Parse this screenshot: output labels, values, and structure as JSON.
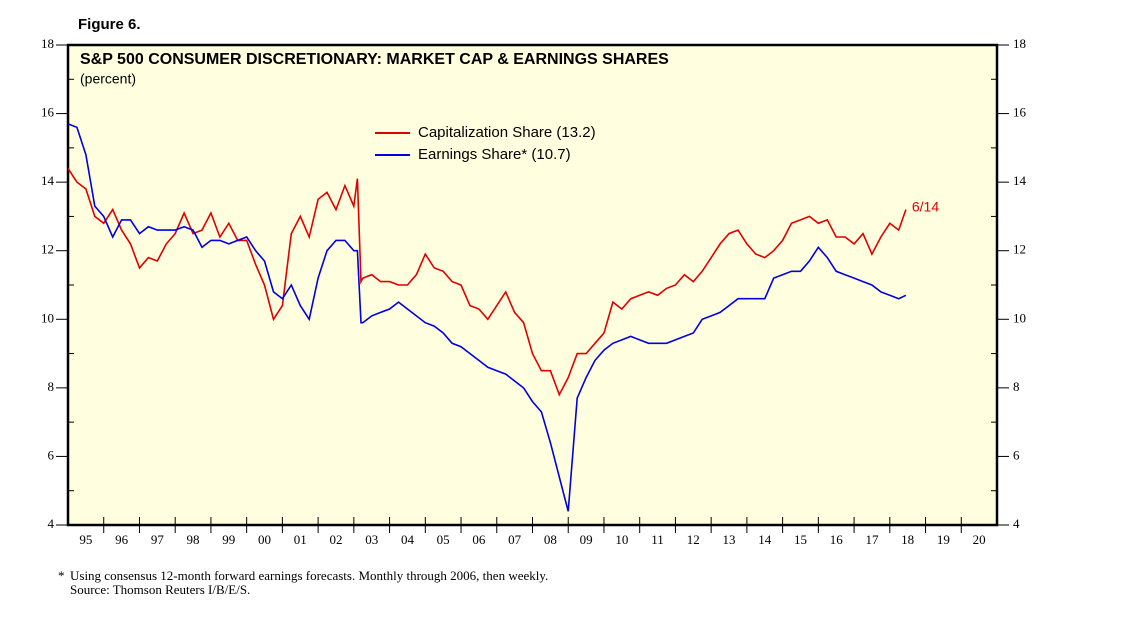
{
  "chart_data": {
    "type": "line",
    "figure_label": "Figure 6.",
    "title": "S&P 500 CONSUMER DISCRETIONARY: MARKET CAP & EARNINGS SHARES",
    "subtitle": "(percent)",
    "annotation": "6/14",
    "footnote": {
      "marker": "*",
      "lines": [
        "Using consensus 12-month forward earnings forecasts. Monthly through 2006, then weekly.",
        "Source: Thomson Reuters I/B/E/S."
      ]
    },
    "x": [
      1995,
      1995.25,
      1995.5,
      1995.75,
      1996,
      1996.25,
      1996.5,
      1996.75,
      1997,
      1997.25,
      1997.5,
      1997.75,
      1998,
      1998.25,
      1998.5,
      1998.75,
      1999,
      1999.25,
      1999.5,
      1999.75,
      2000,
      2000.25,
      2000.5,
      2000.75,
      2001,
      2001.25,
      2001.5,
      2001.75,
      2002,
      2002.25,
      2002.5,
      2002.75,
      2003,
      2003.1,
      2003.2,
      2003.25,
      2003.5,
      2003.75,
      2004,
      2004.25,
      2004.5,
      2004.75,
      2005,
      2005.25,
      2005.5,
      2005.75,
      2006,
      2006.25,
      2006.5,
      2006.75,
      2007,
      2007.25,
      2007.5,
      2007.75,
      2008,
      2008.25,
      2008.5,
      2008.75,
      2009,
      2009.25,
      2009.5,
      2009.75,
      2010,
      2010.25,
      2010.5,
      2010.75,
      2011,
      2011.25,
      2011.5,
      2011.75,
      2012,
      2012.25,
      2012.5,
      2012.75,
      2013,
      2013.25,
      2013.5,
      2013.75,
      2014,
      2014.25,
      2014.5,
      2014.75,
      2015,
      2015.25,
      2015.5,
      2015.75,
      2016,
      2016.25,
      2016.5,
      2016.75,
      2017,
      2017.25,
      2017.5,
      2017.75,
      2018,
      2018.25,
      2018.45
    ],
    "series": [
      {
        "name": "Capitalization Share (13.2)",
        "color": "#e00000",
        "values": [
          14.4,
          14.0,
          13.8,
          13.0,
          12.8,
          13.2,
          12.6,
          12.2,
          11.5,
          11.8,
          11.7,
          12.2,
          12.5,
          13.1,
          12.5,
          12.6,
          13.1,
          12.4,
          12.8,
          12.3,
          12.3,
          11.6,
          11.0,
          10.0,
          10.4,
          12.5,
          13.0,
          12.4,
          13.5,
          13.7,
          13.2,
          13.9,
          13.3,
          14.1,
          11.1,
          11.2,
          11.3,
          11.1,
          11.1,
          11.0,
          11.0,
          11.3,
          11.9,
          11.5,
          11.4,
          11.1,
          11.0,
          10.4,
          10.3,
          10.0,
          10.4,
          10.8,
          10.2,
          9.9,
          9.0,
          8.5,
          8.5,
          7.8,
          8.3,
          9.0,
          9.0,
          9.3,
          9.6,
          10.5,
          10.3,
          10.6,
          10.7,
          10.8,
          10.7,
          10.9,
          11.0,
          11.3,
          11.1,
          11.4,
          11.8,
          12.2,
          12.5,
          12.6,
          12.2,
          11.9,
          11.8,
          12.0,
          12.3,
          12.8,
          12.9,
          13.0,
          12.8,
          12.9,
          12.4,
          12.4,
          12.2,
          12.5,
          11.9,
          12.4,
          12.8,
          12.6,
          13.2
        ]
      },
      {
        "name": "Earnings Share* (10.7)",
        "color": "#0000e0",
        "values": [
          15.7,
          15.6,
          14.8,
          13.3,
          13.0,
          12.4,
          12.9,
          12.9,
          12.5,
          12.7,
          12.6,
          12.6,
          12.6,
          12.7,
          12.6,
          12.1,
          12.3,
          12.3,
          12.2,
          12.3,
          12.4,
          12.0,
          11.7,
          10.8,
          10.6,
          11.0,
          10.4,
          10.0,
          11.2,
          12.0,
          12.3,
          12.3,
          12.0,
          12.0,
          9.9,
          9.9,
          10.1,
          10.2,
          10.3,
          10.5,
          10.3,
          10.1,
          9.9,
          9.8,
          9.6,
          9.3,
          9.2,
          9.0,
          8.8,
          8.6,
          8.5,
          8.4,
          8.2,
          8.0,
          7.6,
          7.3,
          6.4,
          5.4,
          4.4,
          7.7,
          8.3,
          8.8,
          9.1,
          9.3,
          9.4,
          9.5,
          9.4,
          9.3,
          9.3,
          9.3,
          9.4,
          9.5,
          9.6,
          10.0,
          10.1,
          10.2,
          10.4,
          10.6,
          10.6,
          10.6,
          10.6,
          11.2,
          11.3,
          11.4,
          11.4,
          11.7,
          12.1,
          11.8,
          11.4,
          11.3,
          11.2,
          11.1,
          11.0,
          10.8,
          10.7,
          10.6,
          10.7
        ]
      }
    ],
    "xlim": [
      1995,
      2021
    ],
    "xticks": [
      {
        "value": 1995.5,
        "label": "95"
      },
      {
        "value": 1996.5,
        "label": "96"
      },
      {
        "value": 1997.5,
        "label": "97"
      },
      {
        "value": 1998.5,
        "label": "98"
      },
      {
        "value": 1999.5,
        "label": "99"
      },
      {
        "value": 2000.5,
        "label": "00"
      },
      {
        "value": 2001.5,
        "label": "01"
      },
      {
        "value": 2002.5,
        "label": "02"
      },
      {
        "value": 2003.5,
        "label": "03"
      },
      {
        "value": 2004.5,
        "label": "04"
      },
      {
        "value": 2005.5,
        "label": "05"
      },
      {
        "value": 2006.5,
        "label": "06"
      },
      {
        "value": 2007.5,
        "label": "07"
      },
      {
        "value": 2008.5,
        "label": "08"
      },
      {
        "value": 2009.5,
        "label": "09"
      },
      {
        "value": 2010.5,
        "label": "10"
      },
      {
        "value": 2011.5,
        "label": "11"
      },
      {
        "value": 2012.5,
        "label": "12"
      },
      {
        "value": 2013.5,
        "label": "13"
      },
      {
        "value": 2014.5,
        "label": "14"
      },
      {
        "value": 2015.5,
        "label": "15"
      },
      {
        "value": 2016.5,
        "label": "16"
      },
      {
        "value": 2017.5,
        "label": "17"
      },
      {
        "value": 2018.5,
        "label": "18"
      },
      {
        "value": 2019.5,
        "label": "19"
      },
      {
        "value": 2020.5,
        "label": "20"
      }
    ],
    "ylim": [
      4,
      18
    ],
    "yticks": [
      4,
      6,
      8,
      10,
      12,
      14,
      16,
      18
    ],
    "background": "#ffffe0"
  }
}
